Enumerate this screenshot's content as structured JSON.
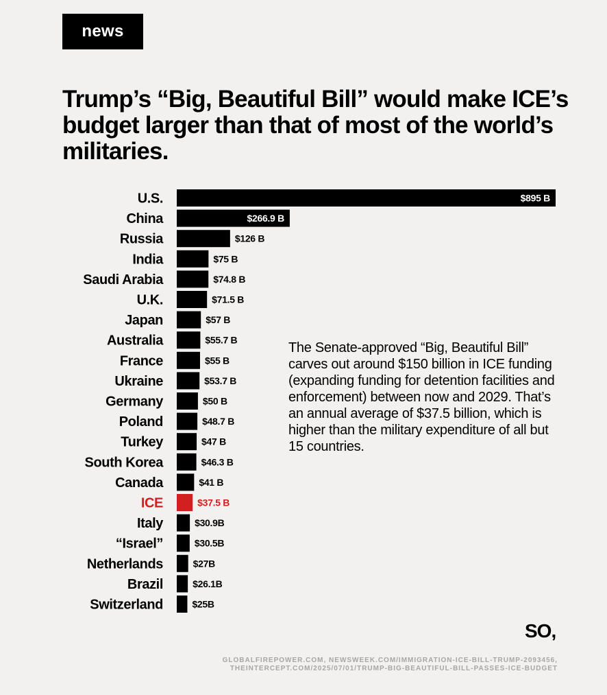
{
  "badge": "news",
  "title": "Trump’s “Big, Beautiful Bill” would make ICE’s budget larger than that of most of the world’s militaries.",
  "note": "The Senate-approved “Big, Beautiful Bill” carves out around $150 billion in ICE funding (expanding funding for detention facilities and enforcement) between now and 2029. That’s an annual average of $37.5 billion, which is higher than the military expenditure of all but 15 countries.",
  "logo": "SO,",
  "sources": [
    "GLOBALFIREPOWER.COM, NEWSWEEK.COM/IMMIGRATION-ICE-BILL-TRUMP-2093456,",
    "THEINTERCEPT.COM/2025/07/01/TRUMP-BIG-BEAUTIFUL-BILL-PASSES-ICE-BUDGET"
  ],
  "colors": {
    "bar": "#000000",
    "highlight": "#d22020",
    "background": "#f2f1ef",
    "label_on_bar": "#ffffff"
  },
  "chart_data": {
    "type": "bar",
    "orientation": "horizontal",
    "title": "",
    "xlabel": "",
    "ylabel": "",
    "xlim": [
      0,
      895
    ],
    "grid": false,
    "highlight_category": "ICE",
    "categories": [
      "U.S.",
      "China",
      "Russia",
      "India",
      "Saudi Arabia",
      "U.K.",
      "Japan",
      "Australia",
      "France",
      "Ukraine",
      "Germany",
      "Poland",
      "Turkey",
      "South Korea",
      "Canada",
      "ICE",
      "Italy",
      "“Israel”",
      "Netherlands",
      "Brazil",
      "Switzerland"
    ],
    "values": [
      895,
      266.9,
      126,
      75,
      74.8,
      71.5,
      57,
      55.7,
      55,
      53.7,
      50,
      48.7,
      47,
      46.3,
      41,
      37.5,
      30.9,
      30.5,
      27,
      26.1,
      25
    ],
    "data_labels": [
      "$895 B",
      "$266.9 B",
      "$126 B",
      "$75 B",
      "$74.8 B",
      "$71.5 B",
      "$57 B",
      "$55.7 B",
      "$55 B",
      "$53.7 B",
      "$50 B",
      "$48.7 B",
      "$47 B",
      "$46.3 B",
      "$41 B",
      "$37.5 B",
      "$30.9B",
      "$30.5B",
      "$27B",
      "$26.1B",
      "$25B"
    ]
  }
}
